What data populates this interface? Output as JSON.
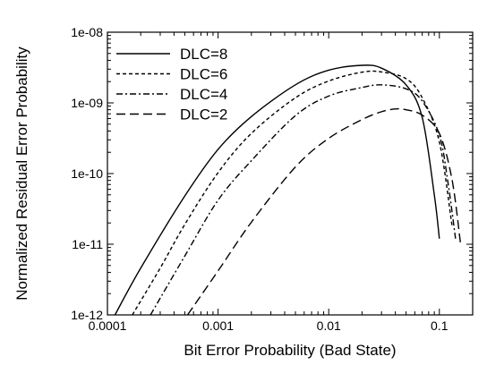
{
  "chart_data": {
    "type": "line",
    "title": "",
    "xlabel": "Bit Error Probability (Bad State)",
    "ylabel": "Normalized Residual Error Probability",
    "xscale": "log",
    "yscale": "log",
    "xlim": [
      0.0001,
      0.2
    ],
    "ylim": [
      1e-12,
      1e-08
    ],
    "grid": false,
    "legend_position": "top-left",
    "x_ticks": [
      {
        "value": 0.0001,
        "label": "0.0001"
      },
      {
        "value": 0.001,
        "label": "0.001"
      },
      {
        "value": 0.01,
        "label": "0.01"
      },
      {
        "value": 0.1,
        "label": "0.1"
      }
    ],
    "y_ticks": [
      {
        "value": 1e-12,
        "label": "1e-12"
      },
      {
        "value": 1e-11,
        "label": "1e-11"
      },
      {
        "value": 1e-10,
        "label": "1e-10"
      },
      {
        "value": 1e-09,
        "label": "1e-09"
      },
      {
        "value": 1e-08,
        "label": "1e-08"
      }
    ],
    "series": [
      {
        "name": "DLC=8",
        "dash": "solid",
        "points": [
          [
            0.000117,
            1e-12
          ],
          [
            0.0002,
            4.6e-12
          ],
          [
            0.0005,
            4.8e-11
          ],
          [
            0.001,
            2.2e-10
          ],
          [
            0.002,
            6.4e-10
          ],
          [
            0.005,
            1.8e-09
          ],
          [
            0.01,
            2.9e-09
          ],
          [
            0.02,
            3.4e-09
          ],
          [
            0.03,
            3.1e-09
          ],
          [
            0.05,
            1.8e-09
          ],
          [
            0.07,
            6.2e-10
          ],
          [
            0.09,
            5e-11
          ],
          [
            0.1,
            1.2e-11
          ]
        ]
      },
      {
        "name": "DLC=6",
        "dash": "short-dash",
        "points": [
          [
            0.000168,
            1e-12
          ],
          [
            0.0003,
            4.6e-12
          ],
          [
            0.0005,
            1.9e-11
          ],
          [
            0.001,
            1.03e-10
          ],
          [
            0.002,
            3.7e-10
          ],
          [
            0.005,
            1.18e-09
          ],
          [
            0.01,
            2.04e-09
          ],
          [
            0.02,
            2.72e-09
          ],
          [
            0.03,
            2.74e-09
          ],
          [
            0.05,
            2.2e-09
          ],
          [
            0.07,
            1.18e-09
          ],
          [
            0.1,
            2.8e-10
          ],
          [
            0.13,
            1.85e-11
          ]
        ]
      },
      {
        "name": "DLC=4",
        "dash": "dash-dot",
        "points": [
          [
            0.000245,
            1e-12
          ],
          [
            0.0005,
            6.8e-12
          ],
          [
            0.001,
            4.2e-11
          ],
          [
            0.002,
            1.52e-10
          ],
          [
            0.005,
            6.6e-10
          ],
          [
            0.01,
            1.25e-09
          ],
          [
            0.02,
            1.65e-09
          ],
          [
            0.03,
            1.8e-09
          ],
          [
            0.05,
            1.58e-09
          ],
          [
            0.07,
            1.06e-09
          ],
          [
            0.1,
            3.5e-10
          ],
          [
            0.12,
            7.2e-11
          ],
          [
            0.14,
            1.2e-11
          ]
        ]
      },
      {
        "name": "DLC=2",
        "dash": "long-dash",
        "points": [
          [
            0.00053,
            1e-12
          ],
          [
            0.001,
            4.2e-12
          ],
          [
            0.002,
            2.05e-11
          ],
          [
            0.005,
            1.24e-10
          ],
          [
            0.01,
            3.15e-10
          ],
          [
            0.02,
            5.8e-10
          ],
          [
            0.03,
            7.5e-10
          ],
          [
            0.04,
            8.2e-10
          ],
          [
            0.05,
            8e-10
          ],
          [
            0.07,
            6.7e-10
          ],
          [
            0.1,
            3.7e-10
          ],
          [
            0.13,
            8.3e-11
          ],
          [
            0.155,
            1.05e-11
          ]
        ]
      }
    ]
  }
}
